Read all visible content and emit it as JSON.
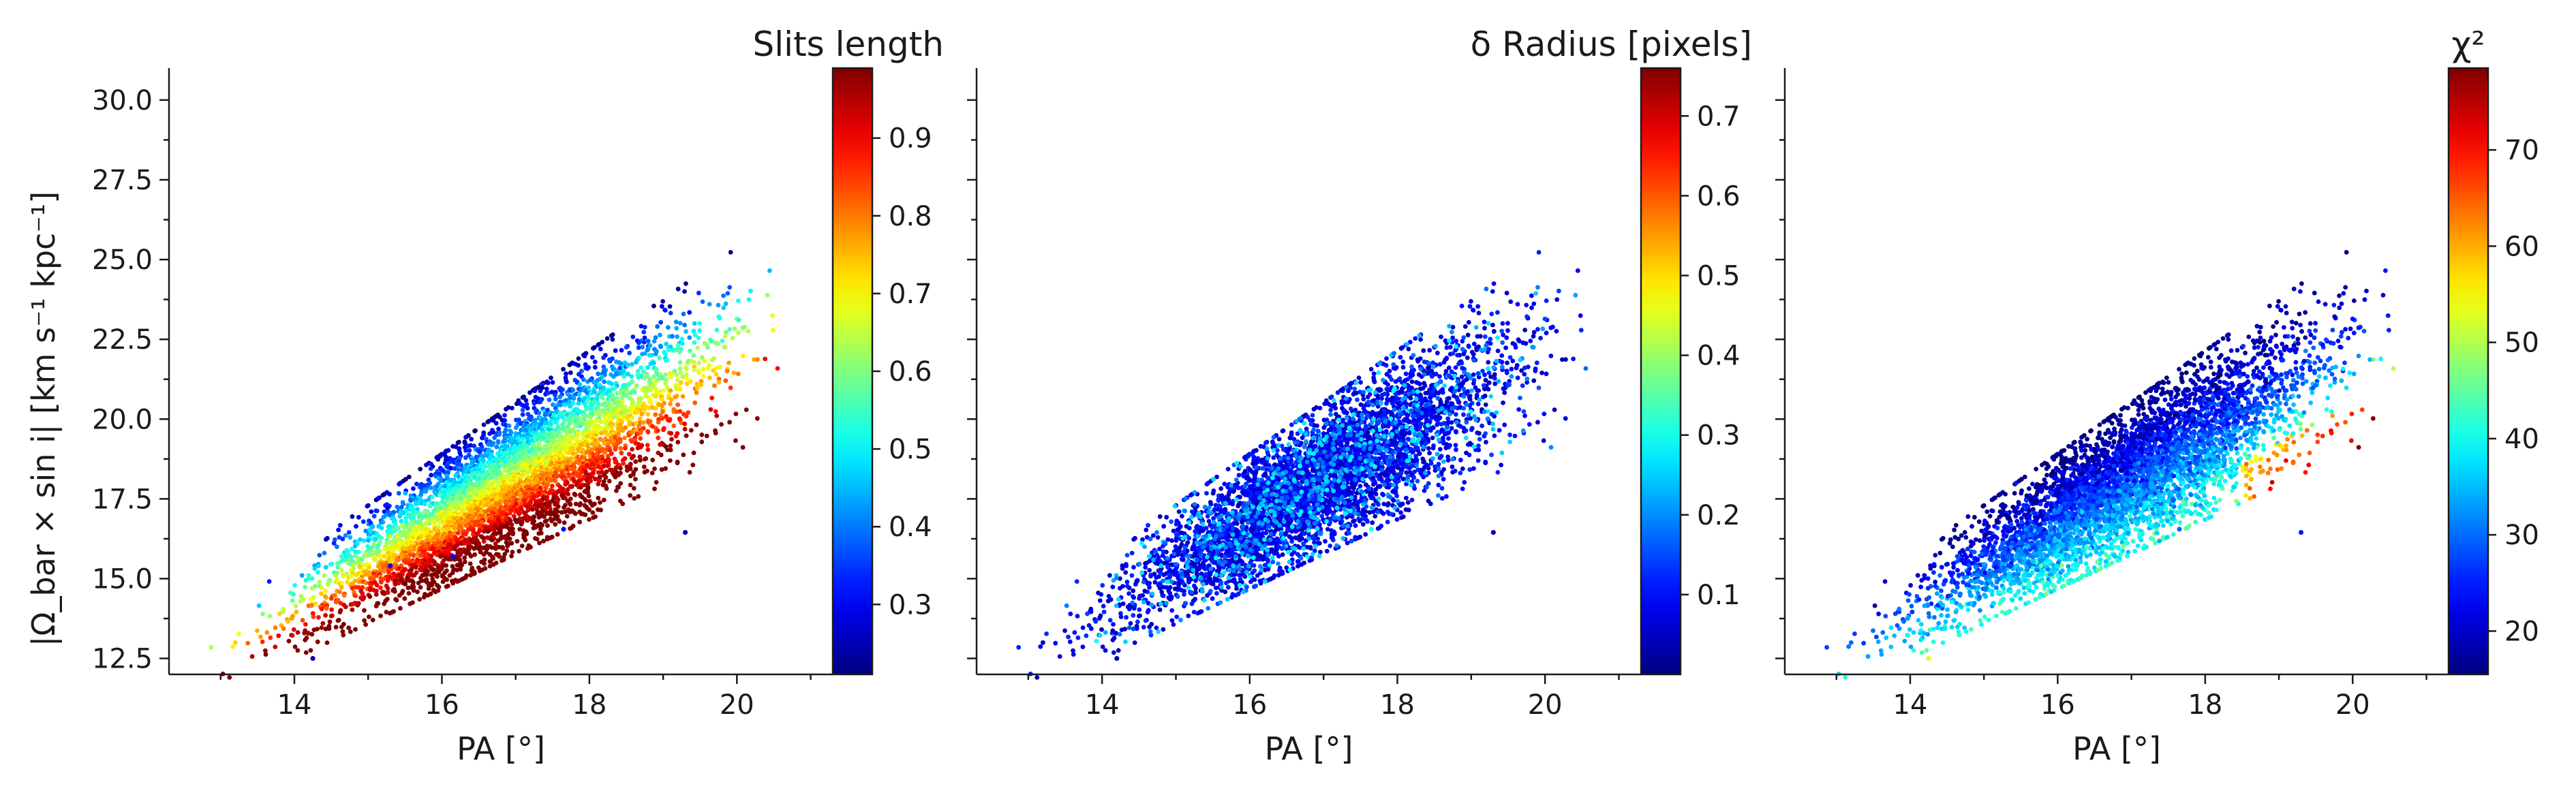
{
  "figure": {
    "ylabel": "|Ω_bar × sin i|   [km s⁻¹ kpc⁻¹]"
  },
  "colormap": "jet",
  "chart_data": [
    {
      "type": "scatter",
      "colorbar_label": "Slits length",
      "xlabel": "PA [°]",
      "ylabel": "|Ω_bar × sin i|   [km s⁻¹ kpc⁻¹]",
      "xlim": [
        12.3,
        21.3
      ],
      "ylim": [
        12.0,
        31.0
      ],
      "x_ticks": [
        "14",
        "16",
        "18",
        "20"
      ],
      "y_ticks": [
        "12.5",
        "15.0",
        "17.5",
        "20.0",
        "22.5",
        "25.0",
        "27.5",
        "30.0"
      ],
      "clim": [
        0.21,
        0.99
      ],
      "cbar_ticks": [
        "0.3",
        "0.4",
        "0.5",
        "0.6",
        "0.7",
        "0.8",
        "0.9"
      ],
      "color_trend": "color increases with distance below the ridge: red/dark-red on the lower edge, green/cyan on the upper edge",
      "outliers": [
        {
          "x": 14.25,
          "y": 12.5,
          "c": 0.25
        },
        {
          "x": 16.15,
          "y": 15.7,
          "c": 0.3
        },
        {
          "x": 17.65,
          "y": 16.55,
          "c": 0.3
        },
        {
          "x": 19.3,
          "y": 16.45,
          "c": 0.25
        },
        {
          "x": 15.3,
          "y": 15.4,
          "c": 0.3
        }
      ],
      "n_points_approx": 5000
    },
    {
      "type": "scatter",
      "colorbar_label": "δ Radius [pixels]",
      "xlabel": "PA [°]",
      "xlim": [
        12.3,
        21.3
      ],
      "ylim": [
        12.0,
        31.0
      ],
      "x_ticks": [
        "14",
        "16",
        "18",
        "20"
      ],
      "clim": [
        0.0,
        0.76
      ],
      "cbar_ticks": [
        "0.1",
        "0.2",
        "0.3",
        "0.4",
        "0.5",
        "0.6",
        "0.7"
      ],
      "color_trend": "mostly dark blue and blue with sparse cyan points, no positional trend",
      "outliers": [
        {
          "x": 14.2,
          "y": 12.5,
          "c": 0.05
        },
        {
          "x": 16.15,
          "y": 15.7,
          "c": 0.05
        },
        {
          "x": 17.65,
          "y": 16.55,
          "c": 0.3
        },
        {
          "x": 19.3,
          "y": 16.45,
          "c": 0.05
        }
      ],
      "n_points_approx": 5000
    },
    {
      "type": "scatter",
      "colorbar_label": "χ²",
      "xlabel": "PA [°]",
      "xlim": [
        12.3,
        21.3
      ],
      "ylim": [
        12.0,
        31.0
      ],
      "x_ticks": [
        "14",
        "16",
        "18",
        "20"
      ],
      "clim": [
        15.5,
        78.5
      ],
      "cbar_ticks": [
        "20",
        "30",
        "40",
        "50",
        "60",
        "70"
      ],
      "color_trend": "blue across most of the band, cyan/yellow on the lower edge, orange and red at high PA",
      "outliers": [
        {
          "x": 14.25,
          "y": 12.5,
          "c": 52
        },
        {
          "x": 16.15,
          "y": 15.7,
          "c": 35
        },
        {
          "x": 17.65,
          "y": 16.55,
          "c": 30
        },
        {
          "x": 19.3,
          "y": 16.45,
          "c": 25
        }
      ],
      "n_points_approx": 5000
    }
  ]
}
